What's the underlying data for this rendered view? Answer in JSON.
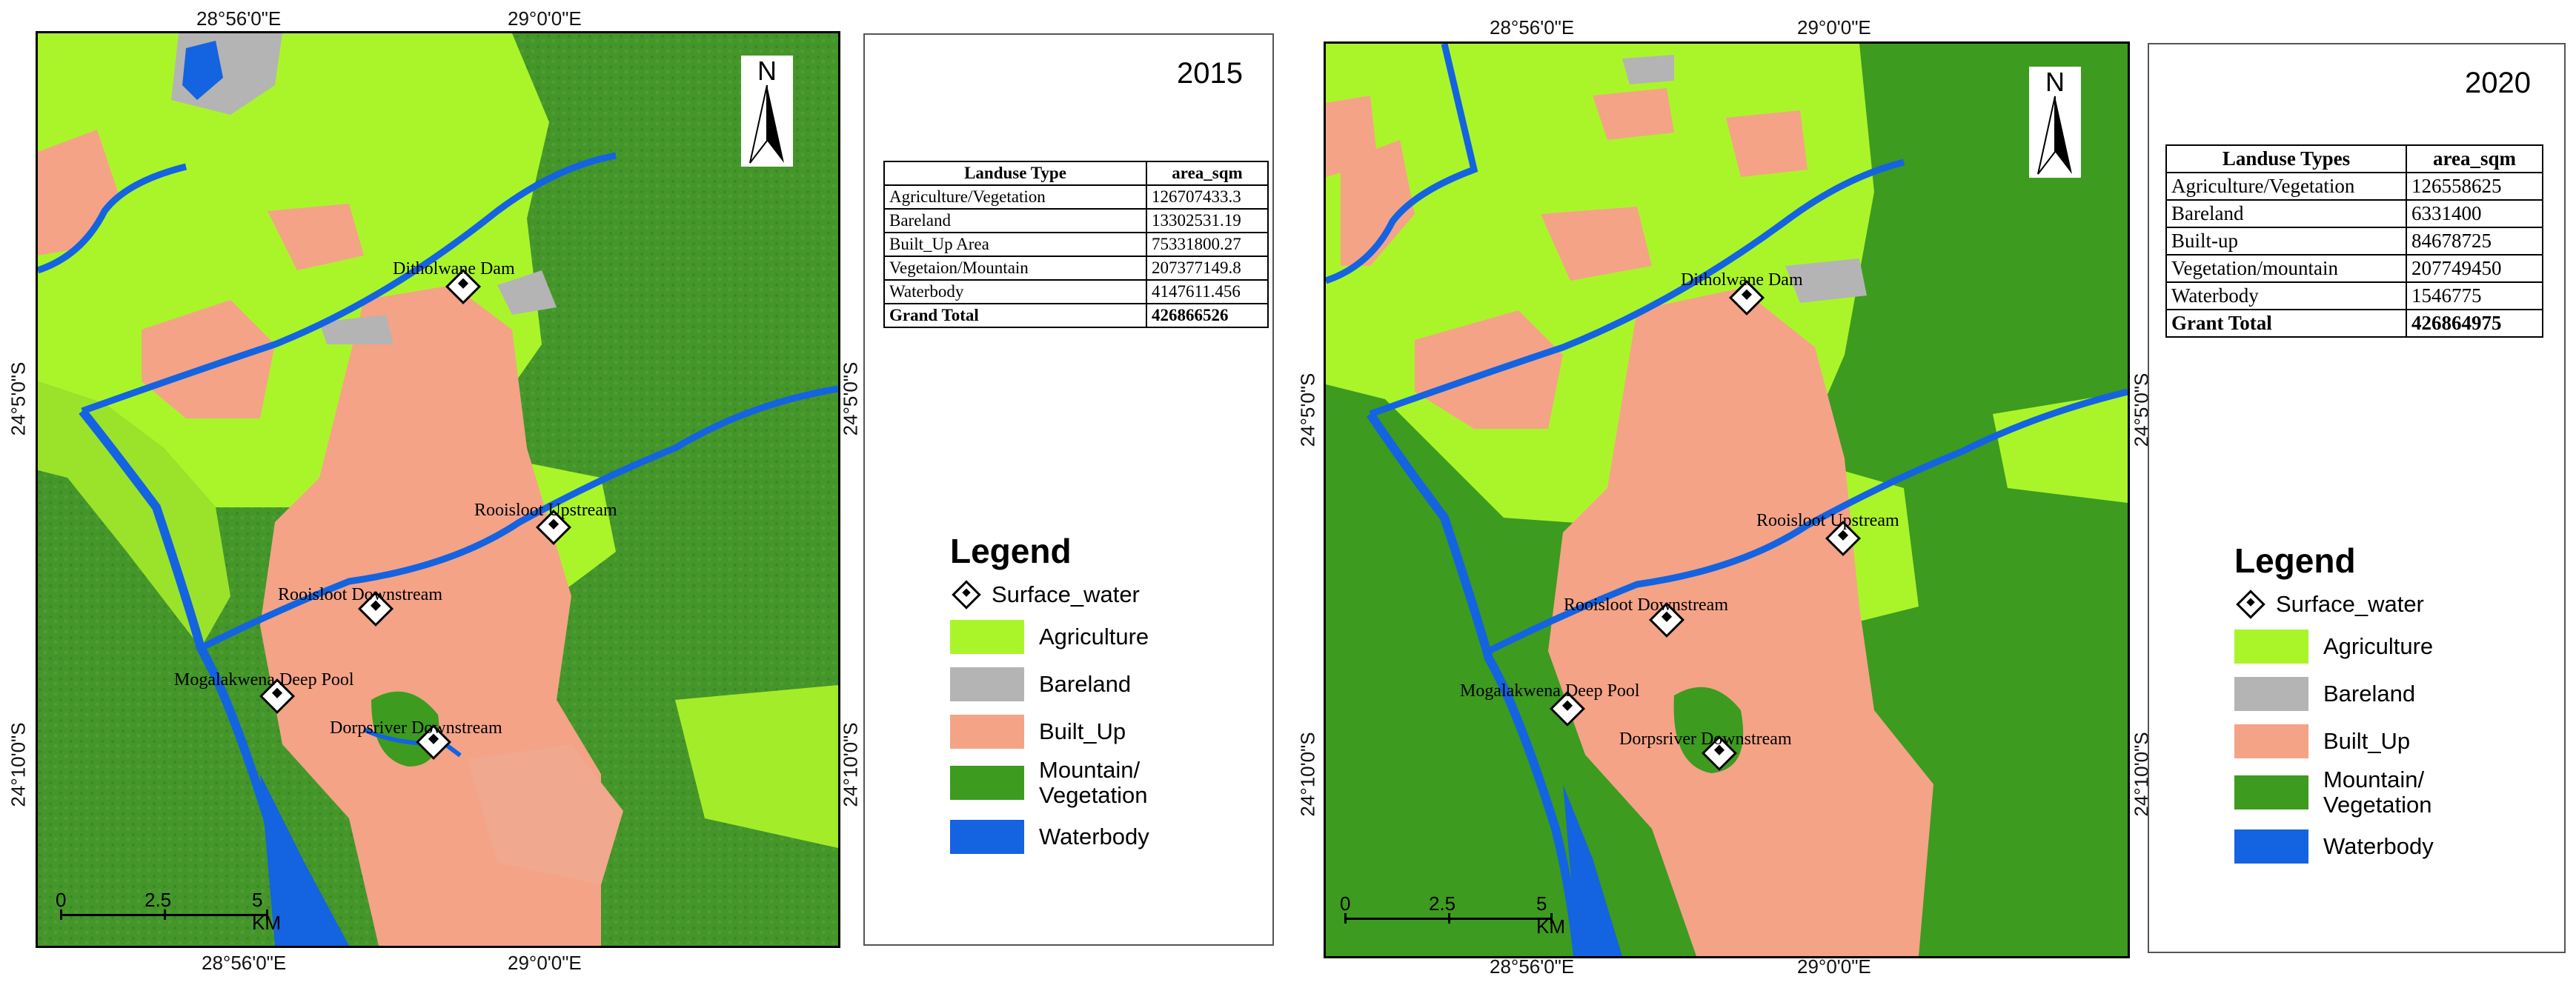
{
  "colors": {
    "agriculture": "#aaf52a",
    "bareland": "#b4b4b4",
    "built_up": "#f4a387",
    "mountain_vegetation": "#3d9b1f",
    "waterbody": "#1463e0"
  },
  "left": {
    "coords": {
      "top_a": "28°56'0\"E",
      "top_b": "29°0'0\"E",
      "bottom_a": "28°56'0\"E",
      "bottom_b": "29°0'0\"E",
      "left_a": "24°5'0\"S",
      "left_b": "24°10'0\"S",
      "right_a": "24°5'0\"S",
      "right_b": "24°10'0\"S"
    },
    "north": "N",
    "scale": {
      "a": "0",
      "b": "2.5",
      "c": "5 KM"
    },
    "sites": [
      "Ditholwane Dam",
      "Rooisloot Upstream",
      "Rooisloot Downstream",
      "Mogalakwena Deep Pool",
      "Dorpsriver Downstream"
    ],
    "year": "2015",
    "table": {
      "headers": [
        "Landuse Type",
        "area_sqm"
      ],
      "rows": [
        [
          "Agriculture/Vegetation",
          "126707433.3"
        ],
        [
          "Bareland",
          "13302531.19"
        ],
        [
          "Built_Up Area",
          "75331800.27"
        ],
        [
          "Vegetaion/Mountain",
          "207377149.8"
        ],
        [
          "Waterbody",
          "4147611.456"
        ]
      ],
      "total": [
        "Grand Total",
        "426866526"
      ]
    },
    "legend": {
      "title": "Legend",
      "point": "Surface_water",
      "items": [
        "Agriculture",
        "Bareland",
        "Built_Up",
        "Mountain/\nVegetation",
        "Waterbody"
      ]
    }
  },
  "right": {
    "coords": {
      "top_a": "28°56'0\"E",
      "top_b": "29°0'0\"E",
      "bottom_a": "28°56'0\"E",
      "bottom_b": "29°0'0\"E",
      "left_a": "24°5'0\"S",
      "left_b": "24°10'0\"S",
      "right_a": "24°5'0\"S",
      "right_b": "24°10'0\"S"
    },
    "north": "N",
    "scale": {
      "a": "0",
      "b": "2.5",
      "c": "5 KM"
    },
    "sites": [
      "Ditholwane Dam",
      "Rooisloot Upstream",
      "Rooisloot Downstream",
      "Mogalakwena Deep Pool",
      "Dorpsriver Downstream"
    ],
    "year": "2020",
    "table": {
      "headers": [
        "Landuse Types",
        "area_sqm"
      ],
      "rows": [
        [
          "Agriculture/Vegetation",
          "126558625"
        ],
        [
          "Bareland",
          "6331400"
        ],
        [
          "Built-up",
          "84678725"
        ],
        [
          "Vegetation/mountain",
          "207749450"
        ],
        [
          "Waterbody",
          "1546775"
        ]
      ],
      "total": [
        "Grant Total",
        "426864975"
      ]
    },
    "legend": {
      "title": "Legend",
      "point": "Surface_water",
      "items": [
        "Agriculture",
        "Bareland",
        "Built_Up",
        "Mountain/\nVegetation",
        "Waterbody"
      ]
    }
  }
}
